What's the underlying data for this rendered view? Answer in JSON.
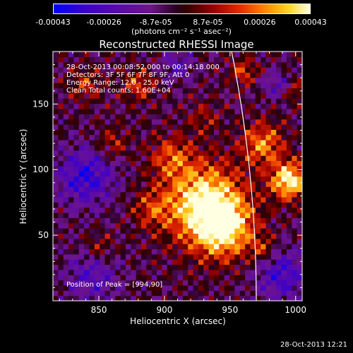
{
  "chart_data": {
    "type": "heatmap",
    "title": "Reconstructed RHESSI Image",
    "xlabel": "Heliocentric X (arcsec)",
    "ylabel": "Heliocentric Y (arcsec)",
    "xlim": [
      815,
      1005
    ],
    "ylim": [
      0,
      190
    ],
    "xticks": [
      850,
      900,
      950,
      1000
    ],
    "yticks": [
      50,
      100,
      150
    ],
    "colorbar": {
      "ticks": [
        "-0.00043",
        "-0.00026",
        "-8.7e-05",
        "8.7e-05",
        "0.00026",
        "0.00043"
      ],
      "tick_values": [
        -0.00043,
        -0.00026,
        -8.7e-05,
        8.7e-05,
        0.00026,
        0.00043
      ],
      "range": [
        -0.00043,
        0.00043
      ],
      "units": "(photons cm⁻² s⁻¹ asec⁻²)"
    },
    "info_lines": [
      "28-Oct-2013 00:08:52.000 to 00:14:18.000",
      "Detectors: 3F 5F 6F 7F 8F 9F, Att 0",
      "Energy Range: 12.0 - 25.0 keV",
      "Clean     Total counts: 1.60E+04"
    ],
    "peak_label": "Position of Peak = [994,90]",
    "peak": [
      994,
      90
    ],
    "grid": false
  },
  "footer": {
    "timestamp": "28-Oct-2013 12:21"
  },
  "colors": {
    "background": "#000000",
    "frame": "#ffffff",
    "limb": "#ffffff"
  }
}
